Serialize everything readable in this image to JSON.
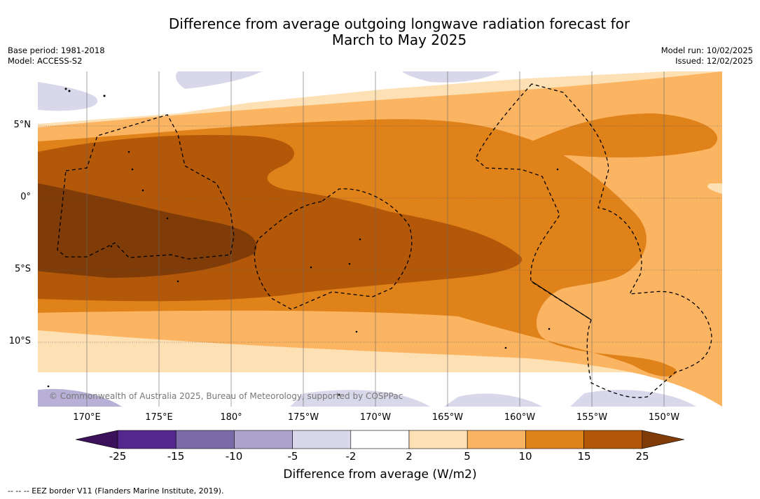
{
  "title_line1": "Difference from average outgoing longwave radiation forecast for",
  "title_line2": "March to May 2025",
  "base_period": "Base period: 1981-2018",
  "model": "Model: ACCESS-S2",
  "model_run": "Model run: 10/02/2025",
  "issued": "Issued: 12/02/2025",
  "lat_labels": [
    "5°N",
    "0°",
    "5°S",
    "10°S"
  ],
  "lon_labels": [
    "170°E",
    "175°E",
    "180°",
    "175°W",
    "170°W",
    "165°W",
    "160°W",
    "155°W",
    "150°W"
  ],
  "copyright": "© Commonwealth of Australia 2025, Bureau of Meteorology, supported by COSPPac",
  "colorbar": {
    "label": "Difference from average (W/m2)",
    "ticks": [
      "-25",
      "-15",
      "-10",
      "-5",
      "-2",
      "2",
      "5",
      "10",
      "15",
      "25"
    ],
    "colors": [
      "#3b1259",
      "#54278f",
      "#7b6aa8",
      "#ada4cd",
      "#d8d8ea",
      "#ffffff",
      "#fde0b4",
      "#fbb562",
      "#e0821a",
      "#b35808",
      "#7f3c08"
    ]
  },
  "eez_legend": "-- -- -- EEZ border V11 (Flanders Marine Institute, 2019)."
}
